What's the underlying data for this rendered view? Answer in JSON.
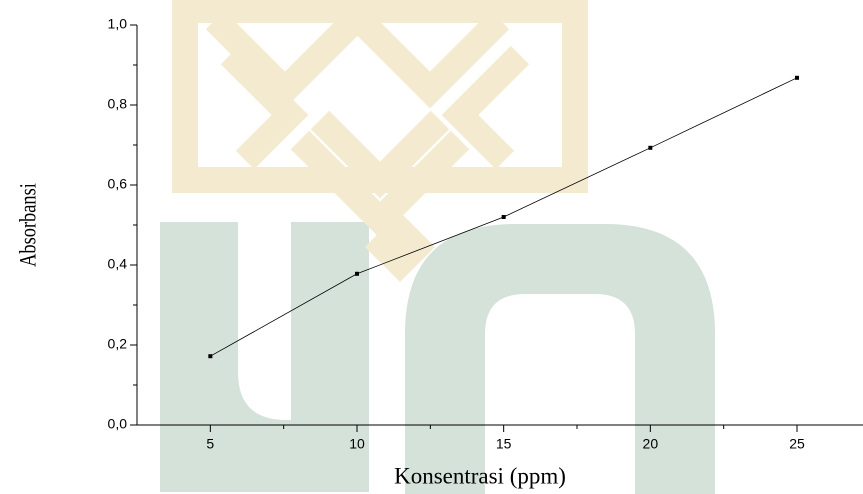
{
  "chart_data": {
    "type": "line",
    "x_label": "Konsentrasi (ppm)",
    "y_label": "Absorbansi",
    "x": [
      5,
      10,
      15,
      20,
      25
    ],
    "series": [
      {
        "name": "Absorbansi",
        "color": "#000000",
        "values": [
          0.172,
          0.378,
          0.52,
          0.693,
          0.868
        ]
      }
    ],
    "xlim": [
      2.5,
      27.25
    ],
    "ylim": [
      0,
      1
    ],
    "xticks": [
      5,
      10,
      15,
      20,
      25
    ],
    "yticks": [
      {
        "value": 0,
        "label": "0,0"
      },
      {
        "value": 0.2,
        "label": "0,2"
      },
      {
        "value": 0.4,
        "label": "0,4"
      },
      {
        "value": 0.6,
        "label": "0,6"
      },
      {
        "value": 0.8,
        "label": "0,8"
      },
      {
        "value": 1,
        "label": "1,0"
      }
    ],
    "xminorticks": [
      7.5,
      12.5,
      17.5,
      22.5
    ],
    "yminorticks": [
      0.1,
      0.3,
      0.5,
      0.7,
      0.9
    ]
  }
}
